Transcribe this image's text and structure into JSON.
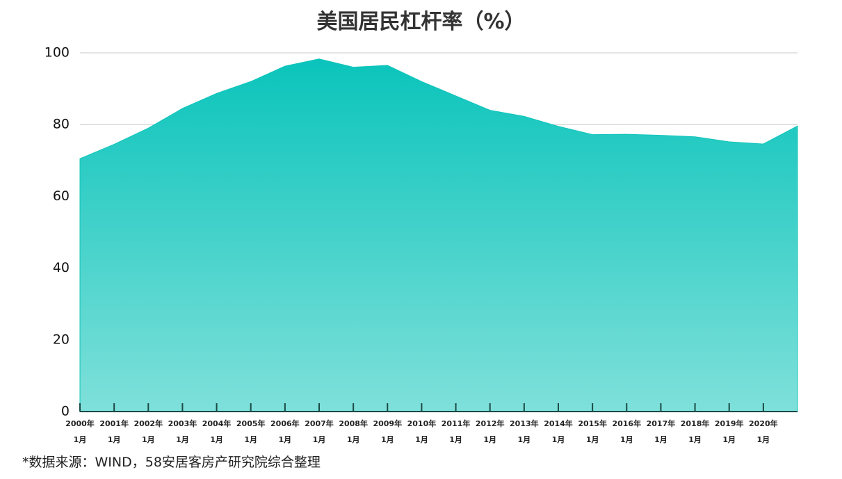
{
  "chart_data": {
    "type": "area",
    "title": "美国居民杠杆率（%）",
    "source": "*数据来源：WIND，58安居客房产研究院综合整理",
    "categories": [
      "2000年\n1月",
      "2001年\n1月",
      "2002年\n1月",
      "2003年\n1月",
      "2004年\n1月",
      "2005年\n1月",
      "2006年\n1月",
      "2007年\n1月",
      "2008年\n1月",
      "2009年\n1月",
      "2010年\n1月",
      "2011年\n1月",
      "2012年\n1月",
      "2013年\n1月",
      "2014年\n1月",
      "2015年\n1月",
      "2016年\n1月",
      "2017年\n1月",
      "2018年\n1月",
      "2019年\n1月",
      "2020年\n1月",
      null
    ],
    "values": [
      70.5,
      74.5,
      79,
      84.5,
      88.7,
      92,
      96.3,
      98.3,
      96,
      96.5,
      92,
      88,
      84,
      82.3,
      79.5,
      77.2,
      77.3,
      77,
      76.6,
      75.2,
      74.6,
      79.6
    ],
    "color": "#0fc4bb",
    "ylim": [
      0,
      100
    ],
    "yticks": [
      0,
      20,
      40,
      60,
      80,
      100
    ],
    "grid": true
  }
}
